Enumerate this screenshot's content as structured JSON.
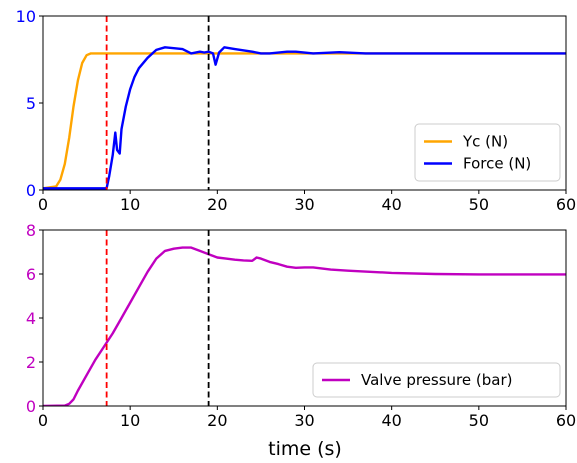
{
  "chart_data": [
    {
      "type": "line",
      "xlim": [
        0,
        60
      ],
      "ylim": [
        0,
        10
      ],
      "xticks": [
        "0",
        "10",
        "20",
        "30",
        "40",
        "50",
        "60"
      ],
      "yticks": [
        "0",
        "5",
        "10"
      ],
      "ytick_color": "#0000ff",
      "legend_position": "lower-right",
      "grid": false,
      "vlines": [
        {
          "x": 7.3,
          "color": "#ff0000",
          "style": "dashed"
        },
        {
          "x": 19.0,
          "color": "#000000",
          "style": "dashed"
        }
      ],
      "series": [
        {
          "name": "Yc (N)",
          "color": "#ffa500",
          "x": [
            0,
            1.5,
            2.0,
            2.5,
            3.0,
            3.5,
            4.0,
            4.5,
            5.0,
            5.5,
            6.0,
            7.0,
            60
          ],
          "y": [
            0.1,
            0.2,
            0.6,
            1.5,
            3.0,
            4.8,
            6.3,
            7.3,
            7.75,
            7.85,
            7.85,
            7.85,
            7.85
          ]
        },
        {
          "name": "Force (N)",
          "color": "#0000ff",
          "x": [
            0,
            7.3,
            7.6,
            8.0,
            8.3,
            8.5,
            8.8,
            9.0,
            9.5,
            10.0,
            10.5,
            11.0,
            12.0,
            13.0,
            14.0,
            15.0,
            16.0,
            17.0,
            18.0,
            18.5,
            19.0,
            19.5,
            19.8,
            20.2,
            20.8,
            22.0,
            24.0,
            25.0,
            26.0,
            28.0,
            29.0,
            31.0,
            34.0,
            37.0,
            45.0,
            60.0
          ],
          "y": [
            0.1,
            0.1,
            0.8,
            2.0,
            3.3,
            2.3,
            2.1,
            3.5,
            4.8,
            5.8,
            6.5,
            7.0,
            7.6,
            8.05,
            8.2,
            8.15,
            8.1,
            7.85,
            7.95,
            7.9,
            7.95,
            7.85,
            7.2,
            7.9,
            8.2,
            8.1,
            7.95,
            7.85,
            7.85,
            7.95,
            7.95,
            7.85,
            7.92,
            7.85,
            7.85,
            7.85
          ]
        }
      ]
    },
    {
      "type": "line",
      "xlabel": "time (s)",
      "xlim": [
        0,
        60
      ],
      "ylim": [
        0,
        8
      ],
      "xticks": [
        "0",
        "10",
        "20",
        "30",
        "40",
        "50",
        "60"
      ],
      "yticks": [
        "0",
        "2",
        "4",
        "6",
        "8"
      ],
      "ytick_color": "#c000c0",
      "legend_position": "lower-right",
      "grid": false,
      "vlines": [
        {
          "x": 7.3,
          "color": "#ff0000",
          "style": "dashed"
        },
        {
          "x": 19.0,
          "color": "#000000",
          "style": "dashed"
        }
      ],
      "series": [
        {
          "name": "Valve pressure (bar)",
          "color": "#c000c0",
          "x": [
            0,
            2.5,
            3.0,
            3.5,
            4.0,
            5.0,
            6.0,
            7.0,
            8.0,
            9.0,
            10.0,
            11.0,
            12.0,
            13.0,
            14.0,
            15.0,
            16.0,
            17.0,
            18.0,
            19.0,
            20.0,
            21.0,
            22.0,
            23.0,
            24.0,
            24.5,
            25.0,
            26.0,
            27.0,
            28.0,
            29.0,
            30.0,
            31.0,
            33.0,
            35.0,
            40.0,
            45.0,
            50.0,
            55.0,
            60.0
          ],
          "y": [
            0,
            0.02,
            0.1,
            0.3,
            0.7,
            1.4,
            2.1,
            2.7,
            3.3,
            4.0,
            4.7,
            5.4,
            6.1,
            6.7,
            7.05,
            7.15,
            7.2,
            7.2,
            7.05,
            6.9,
            6.75,
            6.7,
            6.65,
            6.62,
            6.6,
            6.75,
            6.7,
            6.55,
            6.45,
            6.33,
            6.28,
            6.3,
            6.3,
            6.2,
            6.15,
            6.05,
            6.0,
            5.98,
            5.98,
            5.98
          ]
        }
      ]
    }
  ]
}
